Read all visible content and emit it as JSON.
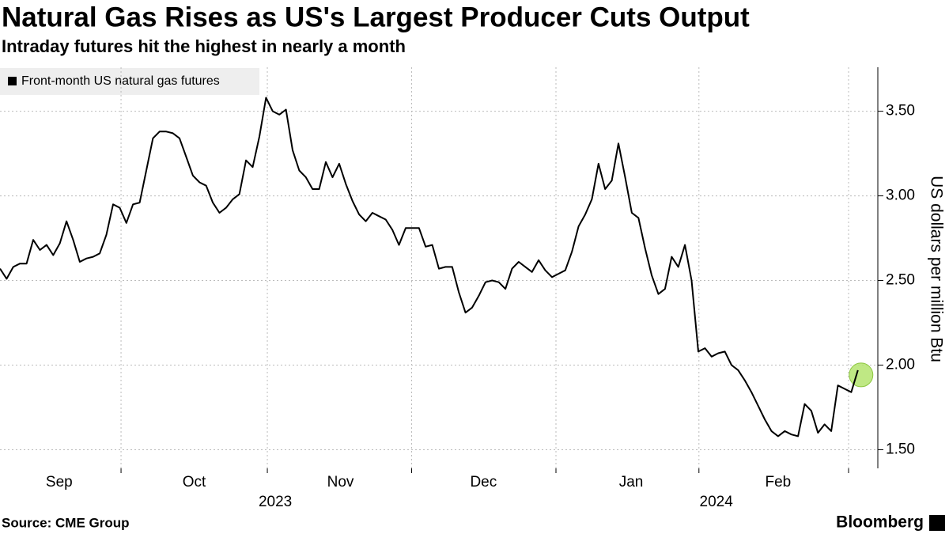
{
  "chart_data": {
    "type": "line",
    "title": "Natural Gas Rises as US's Largest Producer Cuts Output",
    "subtitle": "Intraday futures hit the highest in nearly a month",
    "y_axis_label": "US dollars per million Btu",
    "source": "Source: CME Group",
    "brand": "Bloomberg",
    "series": [
      {
        "name": "Front-month US natural gas futures",
        "color": "#000000",
        "values": [
          2.57,
          2.51,
          2.58,
          2.6,
          2.6,
          2.74,
          2.68,
          2.71,
          2.65,
          2.72,
          2.85,
          2.74,
          2.61,
          2.63,
          2.64,
          2.66,
          2.77,
          2.95,
          2.93,
          2.84,
          2.95,
          2.96,
          3.15,
          3.34,
          3.38,
          3.38,
          3.37,
          3.34,
          3.23,
          3.12,
          3.08,
          3.06,
          2.96,
          2.9,
          2.93,
          2.98,
          3.01,
          3.21,
          3.17,
          3.35,
          3.58,
          3.5,
          3.48,
          3.51,
          3.27,
          3.15,
          3.11,
          3.04,
          3.04,
          3.2,
          3.11,
          3.19,
          3.07,
          2.97,
          2.89,
          2.85,
          2.9,
          2.88,
          2.86,
          2.8,
          2.71,
          2.81,
          2.81,
          2.81,
          2.7,
          2.71,
          2.57,
          2.58,
          2.58,
          2.43,
          2.31,
          2.34,
          2.41,
          2.49,
          2.5,
          2.49,
          2.45,
          2.57,
          2.61,
          2.58,
          2.55,
          2.62,
          2.56,
          2.52,
          2.54,
          2.56,
          2.67,
          2.82,
          2.89,
          2.98,
          3.19,
          3.04,
          3.09,
          3.31,
          3.11,
          2.9,
          2.87,
          2.69,
          2.53,
          2.42,
          2.45,
          2.64,
          2.58,
          2.71,
          2.5,
          2.08,
          2.1,
          2.05,
          2.07,
          2.08,
          2.0,
          1.97,
          1.91,
          1.84,
          1.76,
          1.68,
          1.61,
          1.58,
          1.61,
          1.59,
          1.58,
          1.77,
          1.73,
          1.6,
          1.65,
          1.61,
          1.88,
          1.86,
          1.84,
          1.97
        ]
      }
    ],
    "highlight_color": "#b4e46e",
    "xlim": [
      0,
      132
    ],
    "xticks": [
      {
        "value": 8.9,
        "label": "Sep"
      },
      {
        "value": 29.2,
        "label": "Oct"
      },
      {
        "value": 51.2,
        "label": "Nov"
      },
      {
        "value": 72.7,
        "label": "Dec"
      },
      {
        "value": 94.9,
        "label": "Jan"
      },
      {
        "value": 117,
        "label": "Feb"
      }
    ],
    "xgrid": [
      18.2,
      40.2,
      61.9,
      83.6,
      105.1,
      127.6
    ],
    "year_labels": [
      {
        "value": 41.4,
        "label": "2023"
      },
      {
        "value": 107.7,
        "label": "2024"
      }
    ],
    "ylim": [
      1.39,
      3.76
    ],
    "yticks": [
      {
        "value": 1.5,
        "label": "1.50"
      },
      {
        "value": 2,
        "label": "2.00"
      },
      {
        "value": 2.5,
        "label": "2.50"
      },
      {
        "value": 3,
        "label": "3.00"
      },
      {
        "value": 3.5,
        "label": "3.50"
      }
    ],
    "grid": true
  }
}
